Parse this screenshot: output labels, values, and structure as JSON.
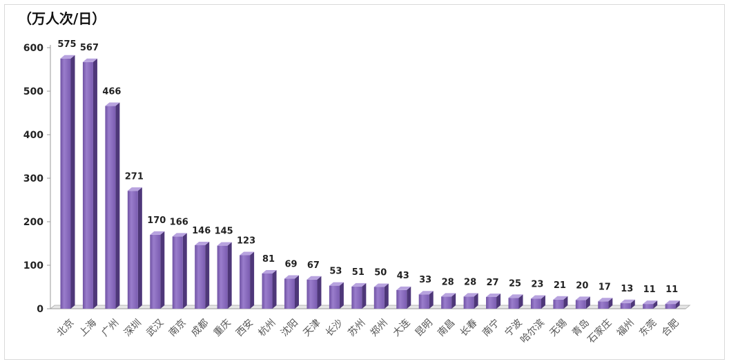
{
  "chart_data": {
    "type": "bar",
    "ylabel": "（万人次/日）",
    "ylim": [
      0,
      600
    ],
    "yticks": [
      0,
      100,
      200,
      300,
      400,
      500,
      600
    ],
    "grid": false,
    "legend": "none",
    "bar_color": "#8e6fbf",
    "categories": [
      "北京",
      "上海",
      "广州",
      "深圳",
      "武汉",
      "南京",
      "成都",
      "重庆",
      "西安",
      "杭州",
      "沈阳",
      "天津",
      "长沙",
      "苏州",
      "郑州",
      "大连",
      "昆明",
      "南昌",
      "长春",
      "南宁",
      "宁波",
      "哈尔滨",
      "无锡",
      "青岛",
      "石家庄",
      "福州",
      "东莞",
      "合肥"
    ],
    "values": [
      575,
      567,
      466,
      271,
      170,
      166,
      146,
      145,
      123,
      81,
      69,
      67,
      53,
      51,
      50,
      43,
      33,
      28,
      28,
      27,
      25,
      23,
      21,
      20,
      17,
      13,
      11,
      11
    ]
  }
}
